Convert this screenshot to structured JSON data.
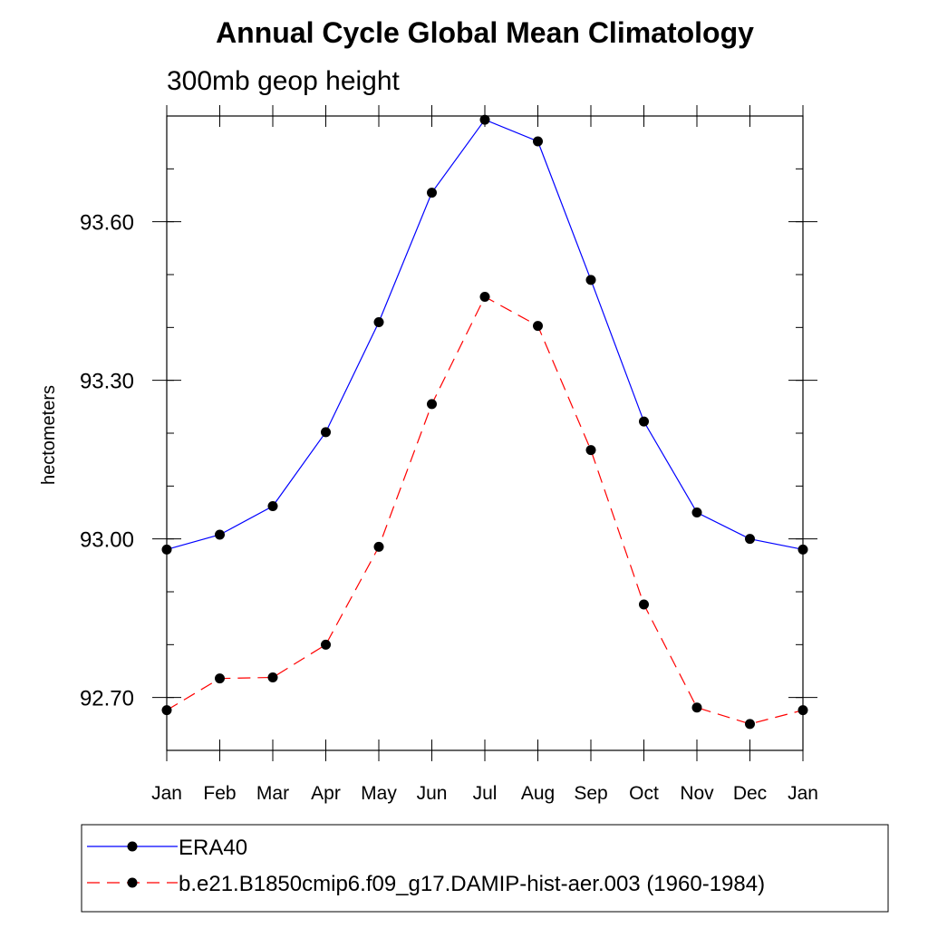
{
  "chart_data": {
    "type": "line",
    "title": "Annual Cycle Global Mean Climatology",
    "subtitle": "300mb geop height",
    "xlabel": "",
    "ylabel": "hectometers",
    "categories": [
      "Jan",
      "Feb",
      "Mar",
      "Apr",
      "May",
      "Jun",
      "Jul",
      "Aug",
      "Sep",
      "Oct",
      "Nov",
      "Dec",
      "Jan"
    ],
    "ylim": [
      92.6,
      93.8
    ],
    "yticks": [
      92.7,
      93.0,
      93.3,
      93.6
    ],
    "ytick_labels": [
      "92.70",
      "93.00",
      "93.30",
      "93.60"
    ],
    "yminor_step": 0.1,
    "series": [
      {
        "name": "ERA40",
        "color": "#0000ff",
        "dash": "solid",
        "values": [
          92.98,
          93.008,
          93.062,
          93.202,
          93.41,
          93.655,
          93.793,
          93.752,
          93.49,
          93.222,
          93.05,
          93.0,
          92.98
        ]
      },
      {
        "name": "b.e21.B1850cmip6.f09_g17.DAMIP-hist-aer.003 (1960-1984)",
        "color": "#ff0000",
        "dash": "dashed",
        "values": [
          92.676,
          92.736,
          92.738,
          92.8,
          92.985,
          93.255,
          93.458,
          93.403,
          93.168,
          92.876,
          92.681,
          92.65,
          92.676
        ]
      }
    ],
    "legend_position": "bottom"
  }
}
